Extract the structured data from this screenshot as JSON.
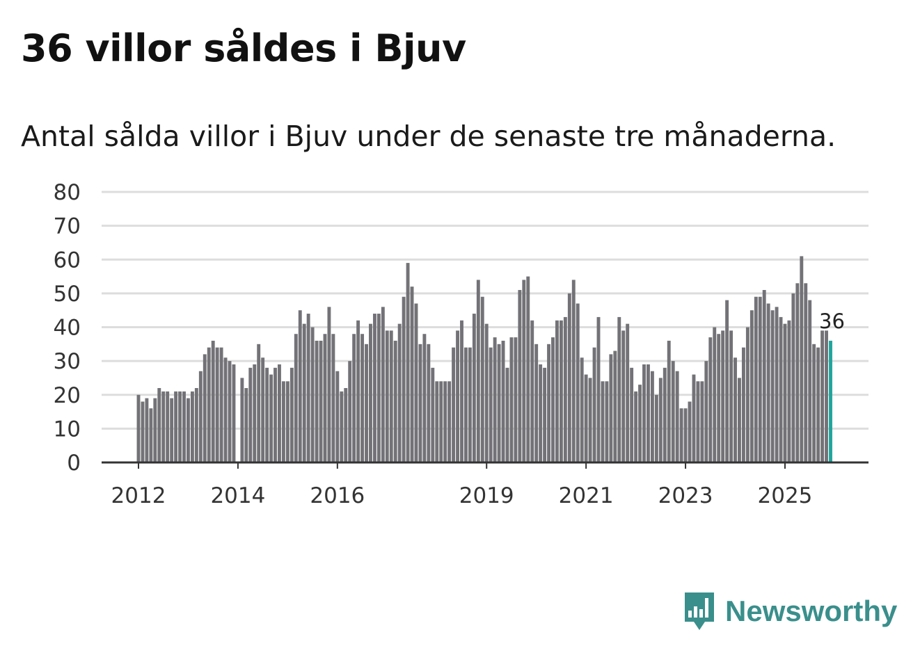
{
  "header": {
    "title": "36 villor såldes i Bjuv",
    "subtitle": "Antal sålda villor i Bjuv under de senaste tre månaderna."
  },
  "brand": {
    "name": "Newsworthy",
    "color": "#3a8f8c"
  },
  "colors": {
    "bar": "#737277",
    "highlight": "#1ea59c",
    "grid": "#dddddd",
    "axis": "#333333"
  },
  "chart_data": {
    "type": "bar",
    "title": "36 villor såldes i Bjuv",
    "subtitle": "Antal sålda villor i Bjuv under de senaste tre månaderna.",
    "xlabel": "",
    "ylabel": "",
    "ylim": [
      0,
      80
    ],
    "yticks": [
      0,
      10,
      20,
      30,
      40,
      50,
      60,
      70,
      80
    ],
    "xticks": [
      {
        "label": "2012",
        "index": 0
      },
      {
        "label": "2014",
        "index": 24
      },
      {
        "label": "2016",
        "index": 48
      },
      {
        "label": "2019",
        "index": 84
      },
      {
        "label": "2021",
        "index": 108
      },
      {
        "label": "2023",
        "index": 132
      },
      {
        "label": "2025",
        "index": 156
      }
    ],
    "grid": true,
    "highlight_last": true,
    "last_value_label": "36",
    "series": [
      {
        "name": "Antal sålda villor (rullande tre månader)",
        "values": [
          20,
          18,
          19,
          16,
          19,
          22,
          21,
          21,
          19,
          21,
          21,
          21,
          19,
          21,
          22,
          27,
          32,
          34,
          36,
          34,
          34,
          31,
          30,
          29,
          null,
          25,
          22,
          28,
          29,
          35,
          31,
          28,
          26,
          28,
          29,
          24,
          24,
          28,
          38,
          45,
          41,
          44,
          40,
          36,
          36,
          38,
          46,
          38,
          27,
          21,
          22,
          30,
          38,
          42,
          38,
          35,
          41,
          44,
          44,
          46,
          39,
          39,
          36,
          41,
          49,
          59,
          52,
          47,
          35,
          38,
          35,
          28,
          24,
          24,
          24,
          24,
          34,
          39,
          42,
          34,
          34,
          44,
          54,
          49,
          41,
          34,
          37,
          35,
          36,
          28,
          37,
          37,
          51,
          54,
          55,
          42,
          35,
          29,
          28,
          35,
          37,
          42,
          42,
          43,
          50,
          54,
          47,
          31,
          26,
          25,
          34,
          43,
          24,
          24,
          32,
          33,
          43,
          39,
          41,
          28,
          21,
          23,
          29,
          29,
          27,
          20,
          25,
          28,
          36,
          30,
          27,
          16,
          16,
          18,
          26,
          24,
          24,
          30,
          37,
          40,
          38,
          39,
          48,
          39,
          31,
          25,
          34,
          40,
          45,
          49,
          49,
          51,
          47,
          45,
          46,
          43,
          41,
          42,
          50,
          53,
          61,
          53,
          48,
          35,
          34,
          39,
          39,
          36
        ]
      }
    ]
  }
}
